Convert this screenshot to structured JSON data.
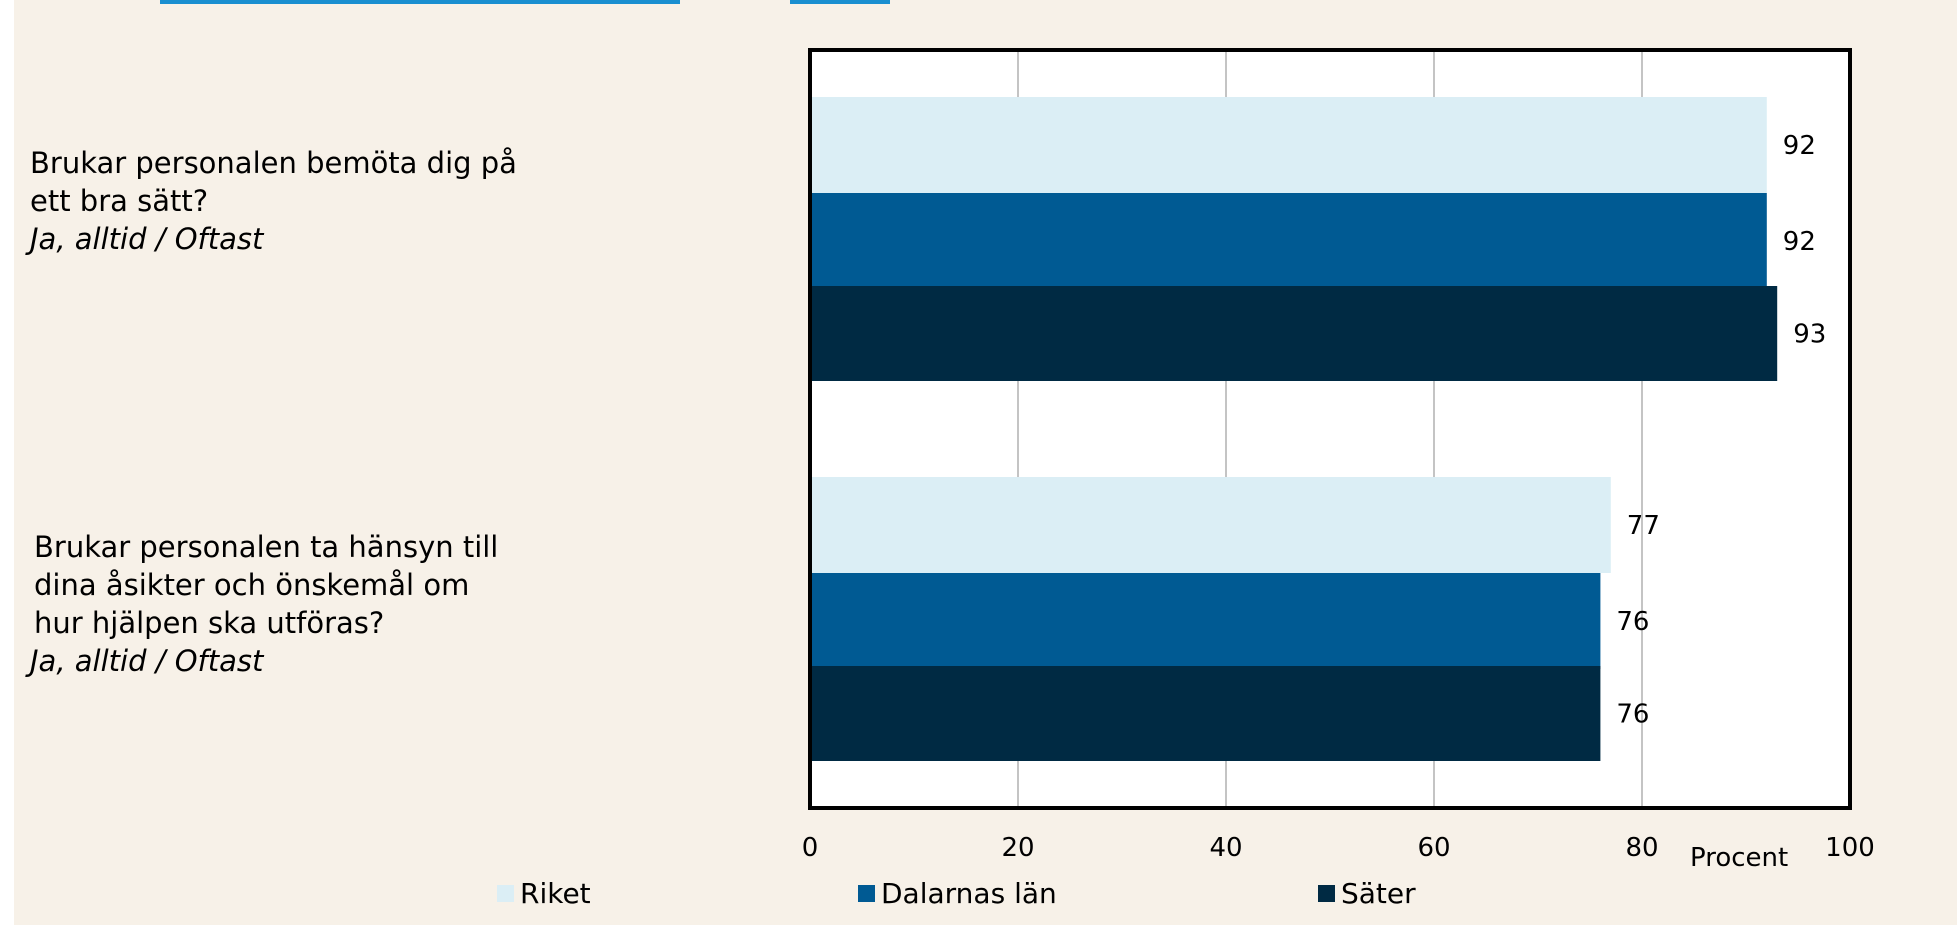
{
  "chart_data": {
    "type": "bar",
    "orientation": "horizontal",
    "categories": [
      {
        "lines": [
          "Brukar personalen bemöta dig på",
          "ett bra sätt?"
        ],
        "sub": "Ja, alltid / Oftast"
      },
      {
        "lines": [
          "Brukar personalen ta hänsyn till",
          "dina åsikter och önskemål om",
          "hur hjälpen ska utföras?"
        ],
        "sub": "Ja, alltid / Oftast"
      }
    ],
    "series": [
      {
        "name": "Riket",
        "color": "#dbeef5",
        "values": [
          92,
          77
        ]
      },
      {
        "name": "Dalarnas län",
        "color": "#005a93",
        "values": [
          92,
          76
        ]
      },
      {
        "name": "Säter",
        "color": "#002a43",
        "values": [
          93,
          76
        ]
      }
    ],
    "xlim": [
      0,
      100
    ],
    "xticks": [
      "0",
      "20",
      "40",
      "60",
      "80",
      "100"
    ],
    "xlabel": "Procent",
    "grid": true,
    "legend": "bottom"
  }
}
